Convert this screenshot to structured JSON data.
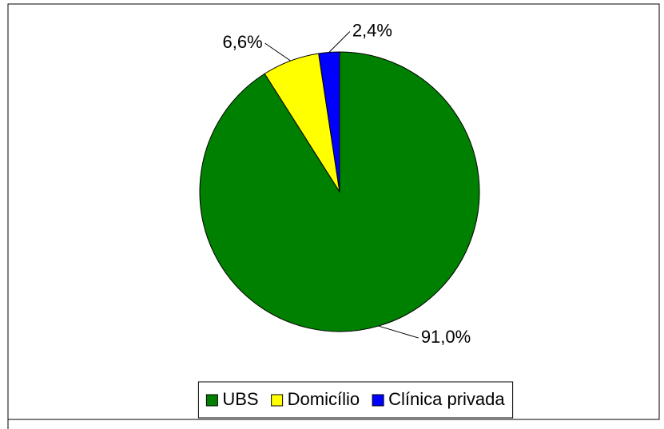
{
  "chart_data": {
    "type": "pie",
    "categories": [
      "UBS",
      "Domicílio",
      "Clínica privada"
    ],
    "values": [
      91.0,
      6.6,
      2.4
    ],
    "value_labels": [
      "91,0%",
      "6,6%",
      "2,4%"
    ],
    "colors": [
      "#008000",
      "#ffff00",
      "#0000ff"
    ],
    "legend": "bottom"
  }
}
